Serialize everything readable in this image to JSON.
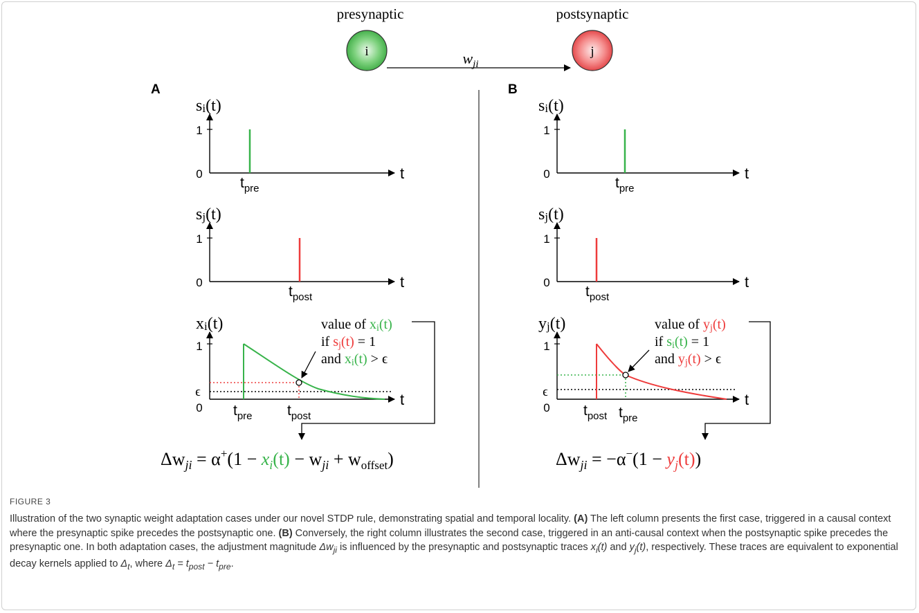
{
  "figure": {
    "network": {
      "pre_label": "presynaptic",
      "post_label": "postsynaptic",
      "pre_node": "i",
      "post_node": "j",
      "weight": "w",
      "weight_sub": "ji",
      "pre_color": "#37b34a",
      "post_color": "#ee3b3b"
    },
    "panels": {
      "A": {
        "letter": "A",
        "spike_pre_label": "s",
        "spike_pre_sub": "i",
        "spike_post_label": "s",
        "spike_post_sub": "j",
        "trace_label": "x",
        "trace_sub": "i",
        "tpre_sub": "pre",
        "tpost_sub": "post",
        "note": {
          "line1_prefix": "value of ",
          "line1_var": "x",
          "line1_sub": "i",
          "line2_prefix": "if ",
          "line2_var": "s",
          "line2_sub": "j",
          "line2_suffix": " = 1",
          "line3_prefix": "and ",
          "line3_var": "x",
          "line3_sub": "i",
          "line3_suffix": " > ϵ"
        },
        "equation": {
          "lhs": "Δw",
          "lhs_sub": "ji",
          "eq": " = α",
          "sup": "+",
          "open": "(1 − ",
          "trace": "x",
          "trace_sub": "i",
          "trace_t": "(t)",
          "rest": " − w",
          "rest_sub": "ji",
          "plus": " + w",
          "offset_sub": "offset",
          "close": ")"
        }
      },
      "B": {
        "letter": "B",
        "spike_pre_label": "s",
        "spike_pre_sub": "i",
        "spike_post_label": "s",
        "spike_post_sub": "j",
        "trace_label": "y",
        "trace_sub": "j",
        "tpre_sub": "pre",
        "tpost_sub": "post",
        "note": {
          "line1_prefix": "value of ",
          "line1_var": "y",
          "line1_sub": "j",
          "line2_prefix": "if ",
          "line2_var": "s",
          "line2_sub": "i",
          "line2_suffix": " = 1",
          "line3_prefix": "and ",
          "line3_var": "y",
          "line3_sub": "j",
          "line3_suffix": " > ϵ"
        },
        "equation": {
          "lhs": "Δw",
          "lhs_sub": "ji",
          "eq": " = −α",
          "sup": "−",
          "open": "(1 − ",
          "trace": "y",
          "trace_sub": "j",
          "trace_t": "(t)",
          "close": ")"
        }
      }
    },
    "axes": {
      "t": "t",
      "paren_t": "(t)",
      "one": "1",
      "zero": "0",
      "epsilon": "ϵ",
      "t_letter": "t"
    }
  },
  "caption": {
    "label": "FIGURE 3",
    "s1": "Illustration of the two synaptic weight adaptation cases under our novel STDP rule, demonstrating spatial and temporal locality. ",
    "a_tag": "(A)",
    "s2": " The left column presents the first case, triggered in a causal context where the presynaptic spike precedes the postsynaptic one. ",
    "b_tag": "(B)",
    "s3": " Conversely, the right column illustrates the second case, triggered in an anti-causal context when the postsynaptic spike precedes the presynaptic one. In both adaptation cases, the adjustment magnitude ",
    "dw": "Δw",
    "dw_sub": "ji",
    "s4": " is influenced by the presynaptic and postsynaptic traces ",
    "x": "x",
    "x_sub": "i",
    "x_t": "(t)",
    "and": " and ",
    "y": "y",
    "y_sub": "j",
    "y_t": "(t)",
    "s5": ", respectively. These traces are equivalent to exponential decay kernels applied to ",
    "delta_t": "Δ",
    "delta_t_sub": "t",
    "s6": ", where ",
    "delta_t2": "Δ",
    "delta_t2_sub": "t",
    "s7": " = t",
    "tpost_sub": "post",
    "minus": " − t",
    "tpre_sub": "pre",
    "end": "."
  }
}
